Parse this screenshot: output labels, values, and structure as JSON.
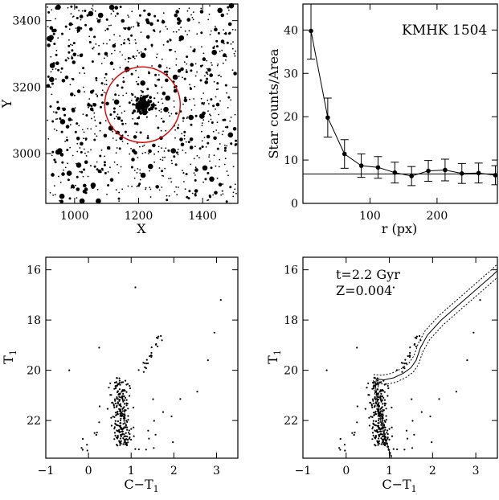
{
  "chart_data": [
    {
      "id": "field-map",
      "type": "scatter",
      "xlabel": "X",
      "ylabel": "Y",
      "xlim": [
        910,
        1510
      ],
      "ylim": [
        2850,
        3450
      ],
      "xticks": [
        "1000",
        "1200",
        "1400"
      ],
      "xtick_values": [
        1000,
        1200,
        1400
      ],
      "yticks": [
        "3000",
        "3200",
        "3400"
      ],
      "ytick_values": [
        3000,
        3200,
        3400
      ],
      "cluster_center": [
        1212,
        3147
      ],
      "circle_radius": 118,
      "circle_color": "#e00000",
      "grid": false,
      "note": "stellar field image, black dots of varying size"
    },
    {
      "id": "radial-profile",
      "type": "line",
      "label": "KMHK 1504",
      "xlabel": "r (px)",
      "ylabel": "Star counts/Area",
      "xlim": [
        0,
        290
      ],
      "ylim": [
        0,
        46
      ],
      "xticks": [
        "100",
        "200"
      ],
      "xtick_values": [
        100,
        200
      ],
      "yticks": [
        "0",
        "10",
        "20",
        "30",
        "40"
      ],
      "ytick_values": [
        0,
        10,
        20,
        30,
        40
      ],
      "background_level": 6.8,
      "x": [
        12,
        37,
        62,
        87,
        112,
        137,
        162,
        187,
        212,
        237,
        262,
        287
      ],
      "y": [
        39.8,
        19.8,
        11.4,
        8.7,
        8.3,
        7.1,
        6.3,
        7.5,
        7.7,
        6.9,
        7.0,
        6.5
      ],
      "err": [
        6.5,
        4.5,
        3.3,
        2.7,
        2.5,
        2.4,
        2.2,
        2.4,
        2.5,
        2.3,
        2.3,
        2.2
      ],
      "grid": false
    },
    {
      "id": "cmd-cluster",
      "type": "scatter",
      "xlabel": "C−T",
      "xlabel_sub": "1",
      "ylabel": "T",
      "ylabel_sub": "1",
      "xlim": [
        -1,
        3.5
      ],
      "ylim": [
        23.5,
        15.5
      ],
      "xticks": [
        "−1",
        "0",
        "1",
        "2",
        "3"
      ],
      "xtick_values": [
        -1,
        0,
        1,
        2,
        3
      ],
      "yticks": [
        "16",
        "18",
        "20",
        "22"
      ],
      "ytick_values": [
        16,
        18,
        20,
        22
      ],
      "grid": false
    },
    {
      "id": "cmd-isochrone",
      "type": "scatter",
      "annotation_lines": [
        "t=2.2 Gyr",
        "Z=0.004"
      ],
      "xlabel": "C−T",
      "xlabel_sub": "1",
      "ylabel": "T",
      "ylabel_sub": "1",
      "xlim": [
        -1,
        3.5
      ],
      "ylim": [
        23.5,
        15.5
      ],
      "xticks": [
        "−1",
        "0",
        "1",
        "2",
        "3"
      ],
      "xtick_values": [
        -1,
        0,
        1,
        2,
        3
      ],
      "yticks": [
        "16",
        "18",
        "20",
        "22"
      ],
      "ytick_values": [
        16,
        18,
        20,
        22
      ],
      "isochrone": [
        [
          1.05,
          23.5
        ],
        [
          0.92,
          22.8
        ],
        [
          0.8,
          22.0
        ],
        [
          0.72,
          21.2
        ],
        [
          0.68,
          20.6
        ],
        [
          0.7,
          20.35
        ],
        [
          0.88,
          20.38
        ],
        [
          1.1,
          20.3
        ],
        [
          1.32,
          20.12
        ],
        [
          1.5,
          19.9
        ],
        [
          1.62,
          19.6
        ],
        [
          1.72,
          19.1
        ],
        [
          1.88,
          18.6
        ],
        [
          2.2,
          18.0
        ],
        [
          2.6,
          17.4
        ],
        [
          3.0,
          16.8
        ],
        [
          3.4,
          16.2
        ],
        [
          3.55,
          15.95
        ]
      ],
      "isochrone_offset_color": 0.05,
      "isochrone_offset_mag": 0.18,
      "grid": false
    }
  ]
}
